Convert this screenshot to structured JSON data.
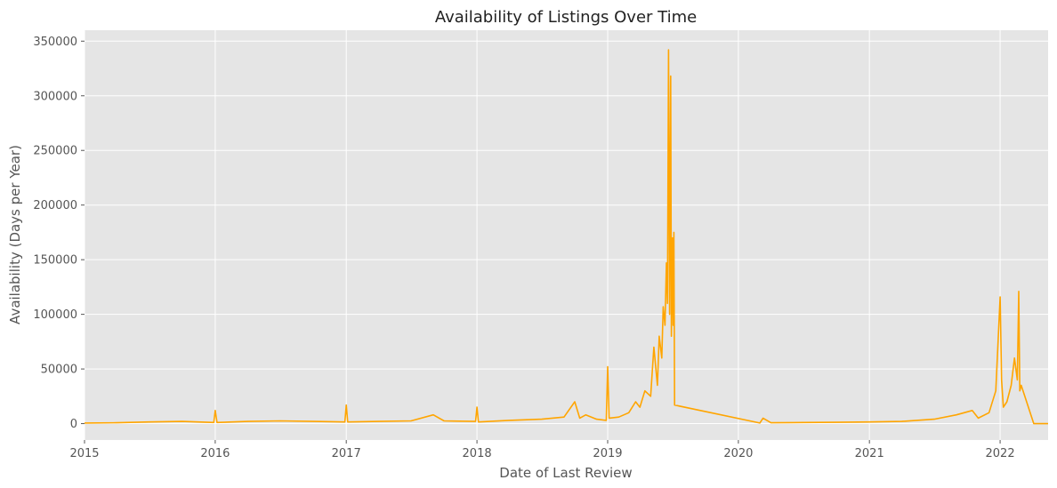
{
  "chart_data": {
    "type": "line",
    "title": "Availability of Listings Over Time",
    "xlabel": "Date of Last Review",
    "ylabel": "Availability (Days per Year)",
    "x_type": "date",
    "xlim": [
      "2015-01-01",
      "2022-05-15"
    ],
    "ylim": [
      -15000,
      360000
    ],
    "x_ticks": [
      "2015",
      "2016",
      "2017",
      "2018",
      "2019",
      "2020",
      "2021",
      "2022"
    ],
    "y_ticks": [
      0,
      50000,
      100000,
      150000,
      200000,
      250000,
      300000,
      350000
    ],
    "grid": true,
    "legend": "none",
    "colors": {
      "line": "#ffa500",
      "plot_bg": "#e5e5e5",
      "grid": "#ffffff"
    },
    "series": [
      {
        "x": [
          "2015-01-01",
          "2015-04-01",
          "2015-07-01",
          "2015-10-01",
          "2015-12-28",
          "2016-01-01",
          "2016-01-06",
          "2016-04-01",
          "2016-07-01",
          "2016-10-01",
          "2016-12-28",
          "2017-01-01",
          "2017-01-05",
          "2017-04-01",
          "2017-07-01",
          "2017-09-01",
          "2017-10-01",
          "2017-12-28",
          "2018-01-01",
          "2018-01-05",
          "2018-04-01",
          "2018-07-01",
          "2018-09-01",
          "2018-10-01",
          "2018-10-15",
          "2018-11-01",
          "2018-12-01",
          "2018-12-28",
          "2019-01-01",
          "2019-01-05",
          "2019-02-01",
          "2019-03-01",
          "2019-03-20",
          "2019-04-01",
          "2019-04-15",
          "2019-05-01",
          "2019-05-10",
          "2019-05-20",
          "2019-05-25",
          "2019-06-01",
          "2019-06-05",
          "2019-06-10",
          "2019-06-14",
          "2019-06-17",
          "2019-06-20",
          "2019-06-23",
          "2019-06-26",
          "2019-06-28",
          "2019-07-01",
          "2019-07-03",
          "2019-07-05",
          "2019-07-07",
          "2020-03-01",
          "2020-03-10",
          "2020-04-01",
          "2020-07-01",
          "2020-10-01",
          "2021-01-01",
          "2021-04-01",
          "2021-07-01",
          "2021-09-01",
          "2021-10-15",
          "2021-11-01",
          "2021-12-01",
          "2021-12-20",
          "2022-01-01",
          "2022-01-05",
          "2022-01-10",
          "2022-01-20",
          "2022-02-01",
          "2022-02-10",
          "2022-02-18",
          "2022-02-22",
          "2022-02-25",
          "2022-03-01",
          "2022-04-05",
          "2022-05-15"
        ],
        "y": [
          500,
          800,
          1500,
          2000,
          1000,
          12000,
          1000,
          2000,
          2500,
          2000,
          1500,
          17000,
          1500,
          2000,
          2500,
          8000,
          2500,
          2000,
          15000,
          1500,
          3000,
          4000,
          6000,
          20000,
          5000,
          8000,
          4000,
          3000,
          52000,
          5000,
          6000,
          10000,
          20000,
          15000,
          30000,
          25000,
          70000,
          35000,
          80000,
          60000,
          107000,
          90000,
          147000,
          110000,
          342000,
          100000,
          318000,
          80000,
          170000,
          90000,
          175000,
          17000,
          500,
          5000,
          800,
          1000,
          1200,
          1500,
          2000,
          4000,
          8000,
          12000,
          5000,
          10000,
          30000,
          116000,
          40000,
          15000,
          20000,
          35000,
          60000,
          40000,
          121000,
          30000,
          35000,
          0,
          0
        ]
      }
    ]
  }
}
